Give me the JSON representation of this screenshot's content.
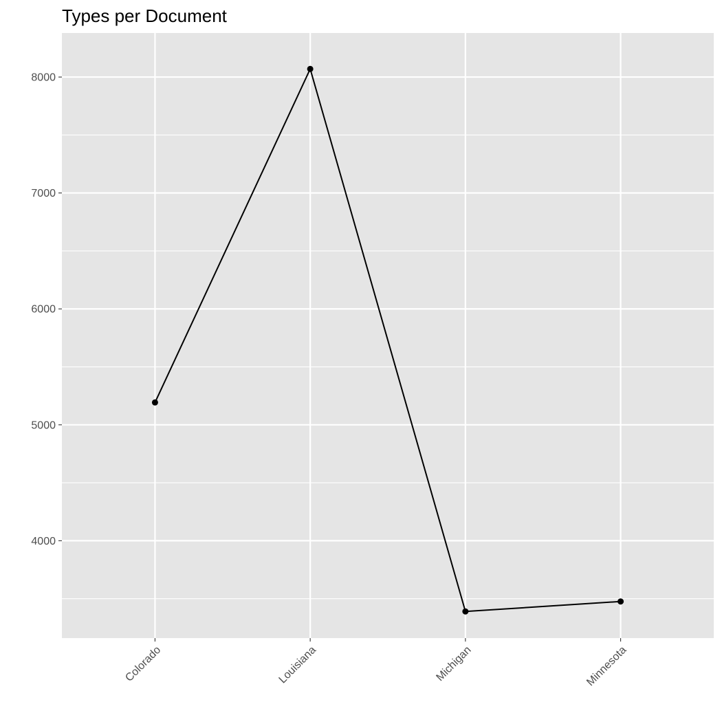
{
  "chart_data": {
    "type": "line",
    "title": "Types per Document",
    "xlabel": "",
    "ylabel": "",
    "categories": [
      "Colorado",
      "Louisiana",
      "Michigan",
      "Minnesota"
    ],
    "series": [
      {
        "values": [
          5193,
          8070,
          3390,
          3476
        ]
      }
    ],
    "ylim": [
      3160,
      8380
    ],
    "y_ticks": [
      4000,
      5000,
      6000,
      7000,
      8000
    ],
    "y_minor_ticks": [
      3500,
      4500,
      5500,
      6500,
      7500
    ],
    "grid": true,
    "x_tick_rotation_deg": 45,
    "colors": {
      "panel_background": "#E5E5E5",
      "grid_line": "#FFFFFF",
      "series_line": "#000000",
      "point": "#000000",
      "tick_label": "#4D4D4D",
      "tick_mark": "#333333",
      "title": "#000000"
    }
  }
}
